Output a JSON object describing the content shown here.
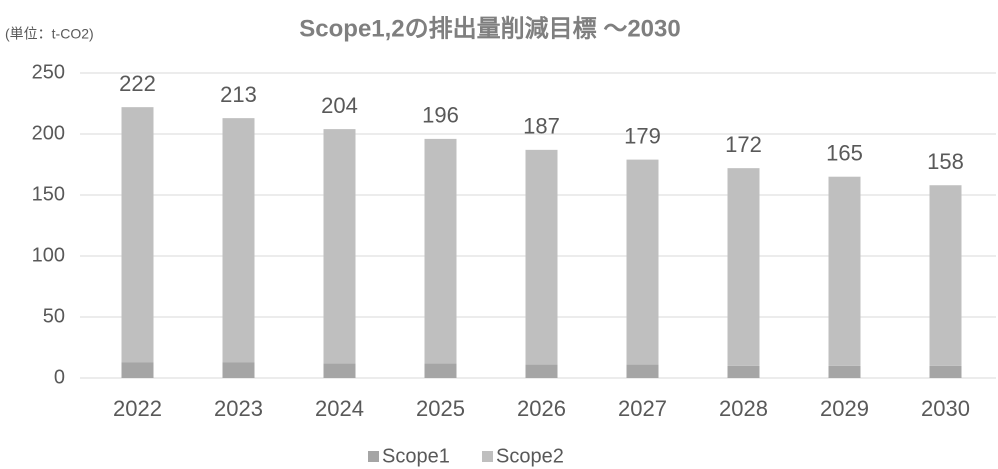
{
  "chart_data": {
    "type": "stacked_bar",
    "title": "Scope1,2の排出量削減目標 ～2030",
    "unit_label": "(単位：t-CO2)",
    "categories": [
      "2022",
      "2023",
      "2024",
      "2025",
      "2026",
      "2027",
      "2028",
      "2029",
      "2030"
    ],
    "series": [
      {
        "name": "Scope1",
        "color": "#a5a5a5",
        "values": [
          13,
          13,
          12,
          12,
          11,
          11,
          10,
          10,
          10
        ]
      },
      {
        "name": "Scope2",
        "color": "#bfbfbf",
        "values": [
          209,
          200,
          192,
          184,
          176,
          168,
          162,
          155,
          148
        ]
      }
    ],
    "total_labels": [
      222,
      213,
      204,
      196,
      187,
      179,
      172,
      165,
      158
    ],
    "ylim": [
      0,
      250
    ],
    "yticks": [
      0,
      50,
      100,
      150,
      200,
      250
    ],
    "grid": true,
    "legend": "bottom"
  }
}
